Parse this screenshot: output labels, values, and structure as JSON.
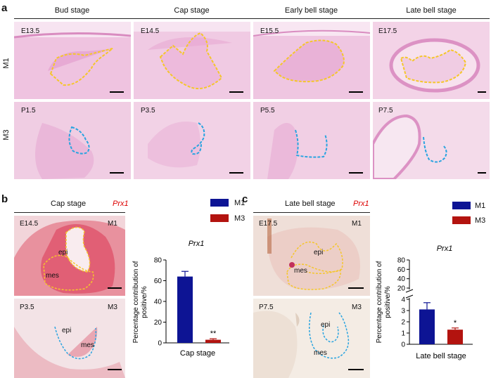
{
  "panel_a": {
    "letter": "a",
    "stages": [
      "Bud stage",
      "Cap stage",
      "Early bell stage",
      "Late bell stage"
    ],
    "rows": [
      "M1",
      "M3"
    ],
    "tiles_m1": [
      "E13.5",
      "E14.5",
      "E15.5",
      "E17.5"
    ],
    "tiles_m3": [
      "P1.5",
      "P3.5",
      "P5.5",
      "P7.5"
    ]
  },
  "panel_b": {
    "letter": "b",
    "header": "Cap stage",
    "gene": "Prx1",
    "top_tile": {
      "age": "E14.5",
      "molar": "M1",
      "epi": "epi",
      "mes": "mes"
    },
    "bottom_tile": {
      "age": "P3.5",
      "molar": "M3",
      "epi": "epi",
      "mes": "mes"
    }
  },
  "panel_c": {
    "letter": "c",
    "header": "Late bell stage",
    "gene": "Prx1",
    "top_tile": {
      "age": "E17.5",
      "molar": "M1",
      "epi": "epi",
      "mes": "mes"
    },
    "bottom_tile": {
      "age": "P7.5",
      "molar": "M3",
      "epi": "epi",
      "mes": "mes"
    }
  },
  "legend": {
    "m1": "M1",
    "m3": "M3",
    "m1_color": "#0d1494",
    "m3_color": "#b3130f"
  },
  "chart_data": [
    {
      "type": "bar",
      "title": "Prx1",
      "ylabel_line1": "Percentage contribution of",
      "ylabel_line2": "positive/%",
      "xlabel": "Cap stage",
      "series": [
        {
          "name": "M1",
          "value": 64,
          "error": 5
        },
        {
          "name": "M3",
          "value": 3,
          "error": 1
        }
      ],
      "ylim": [
        0,
        80
      ],
      "yticks": [
        "0",
        "20",
        "40",
        "60",
        "80"
      ],
      "significance": "**"
    },
    {
      "type": "bar",
      "title": "Prx1",
      "ylabel_line1": "Percentage contribution of",
      "ylabel_line2": "positive/%",
      "xlabel": "Late bell stage",
      "series": [
        {
          "name": "M1",
          "value": 3.1,
          "error": 0.6
        },
        {
          "name": "M3",
          "value": 1.3,
          "error": 0.15
        }
      ],
      "broken_axis": true,
      "lower_ylim": [
        0,
        4
      ],
      "upper_ylim": [
        20,
        80
      ],
      "yticks_lower": [
        "0",
        "1",
        "2",
        "3",
        "4"
      ],
      "yticks_upper": [
        "20",
        "40",
        "60",
        "80"
      ],
      "significance": "*"
    }
  ]
}
